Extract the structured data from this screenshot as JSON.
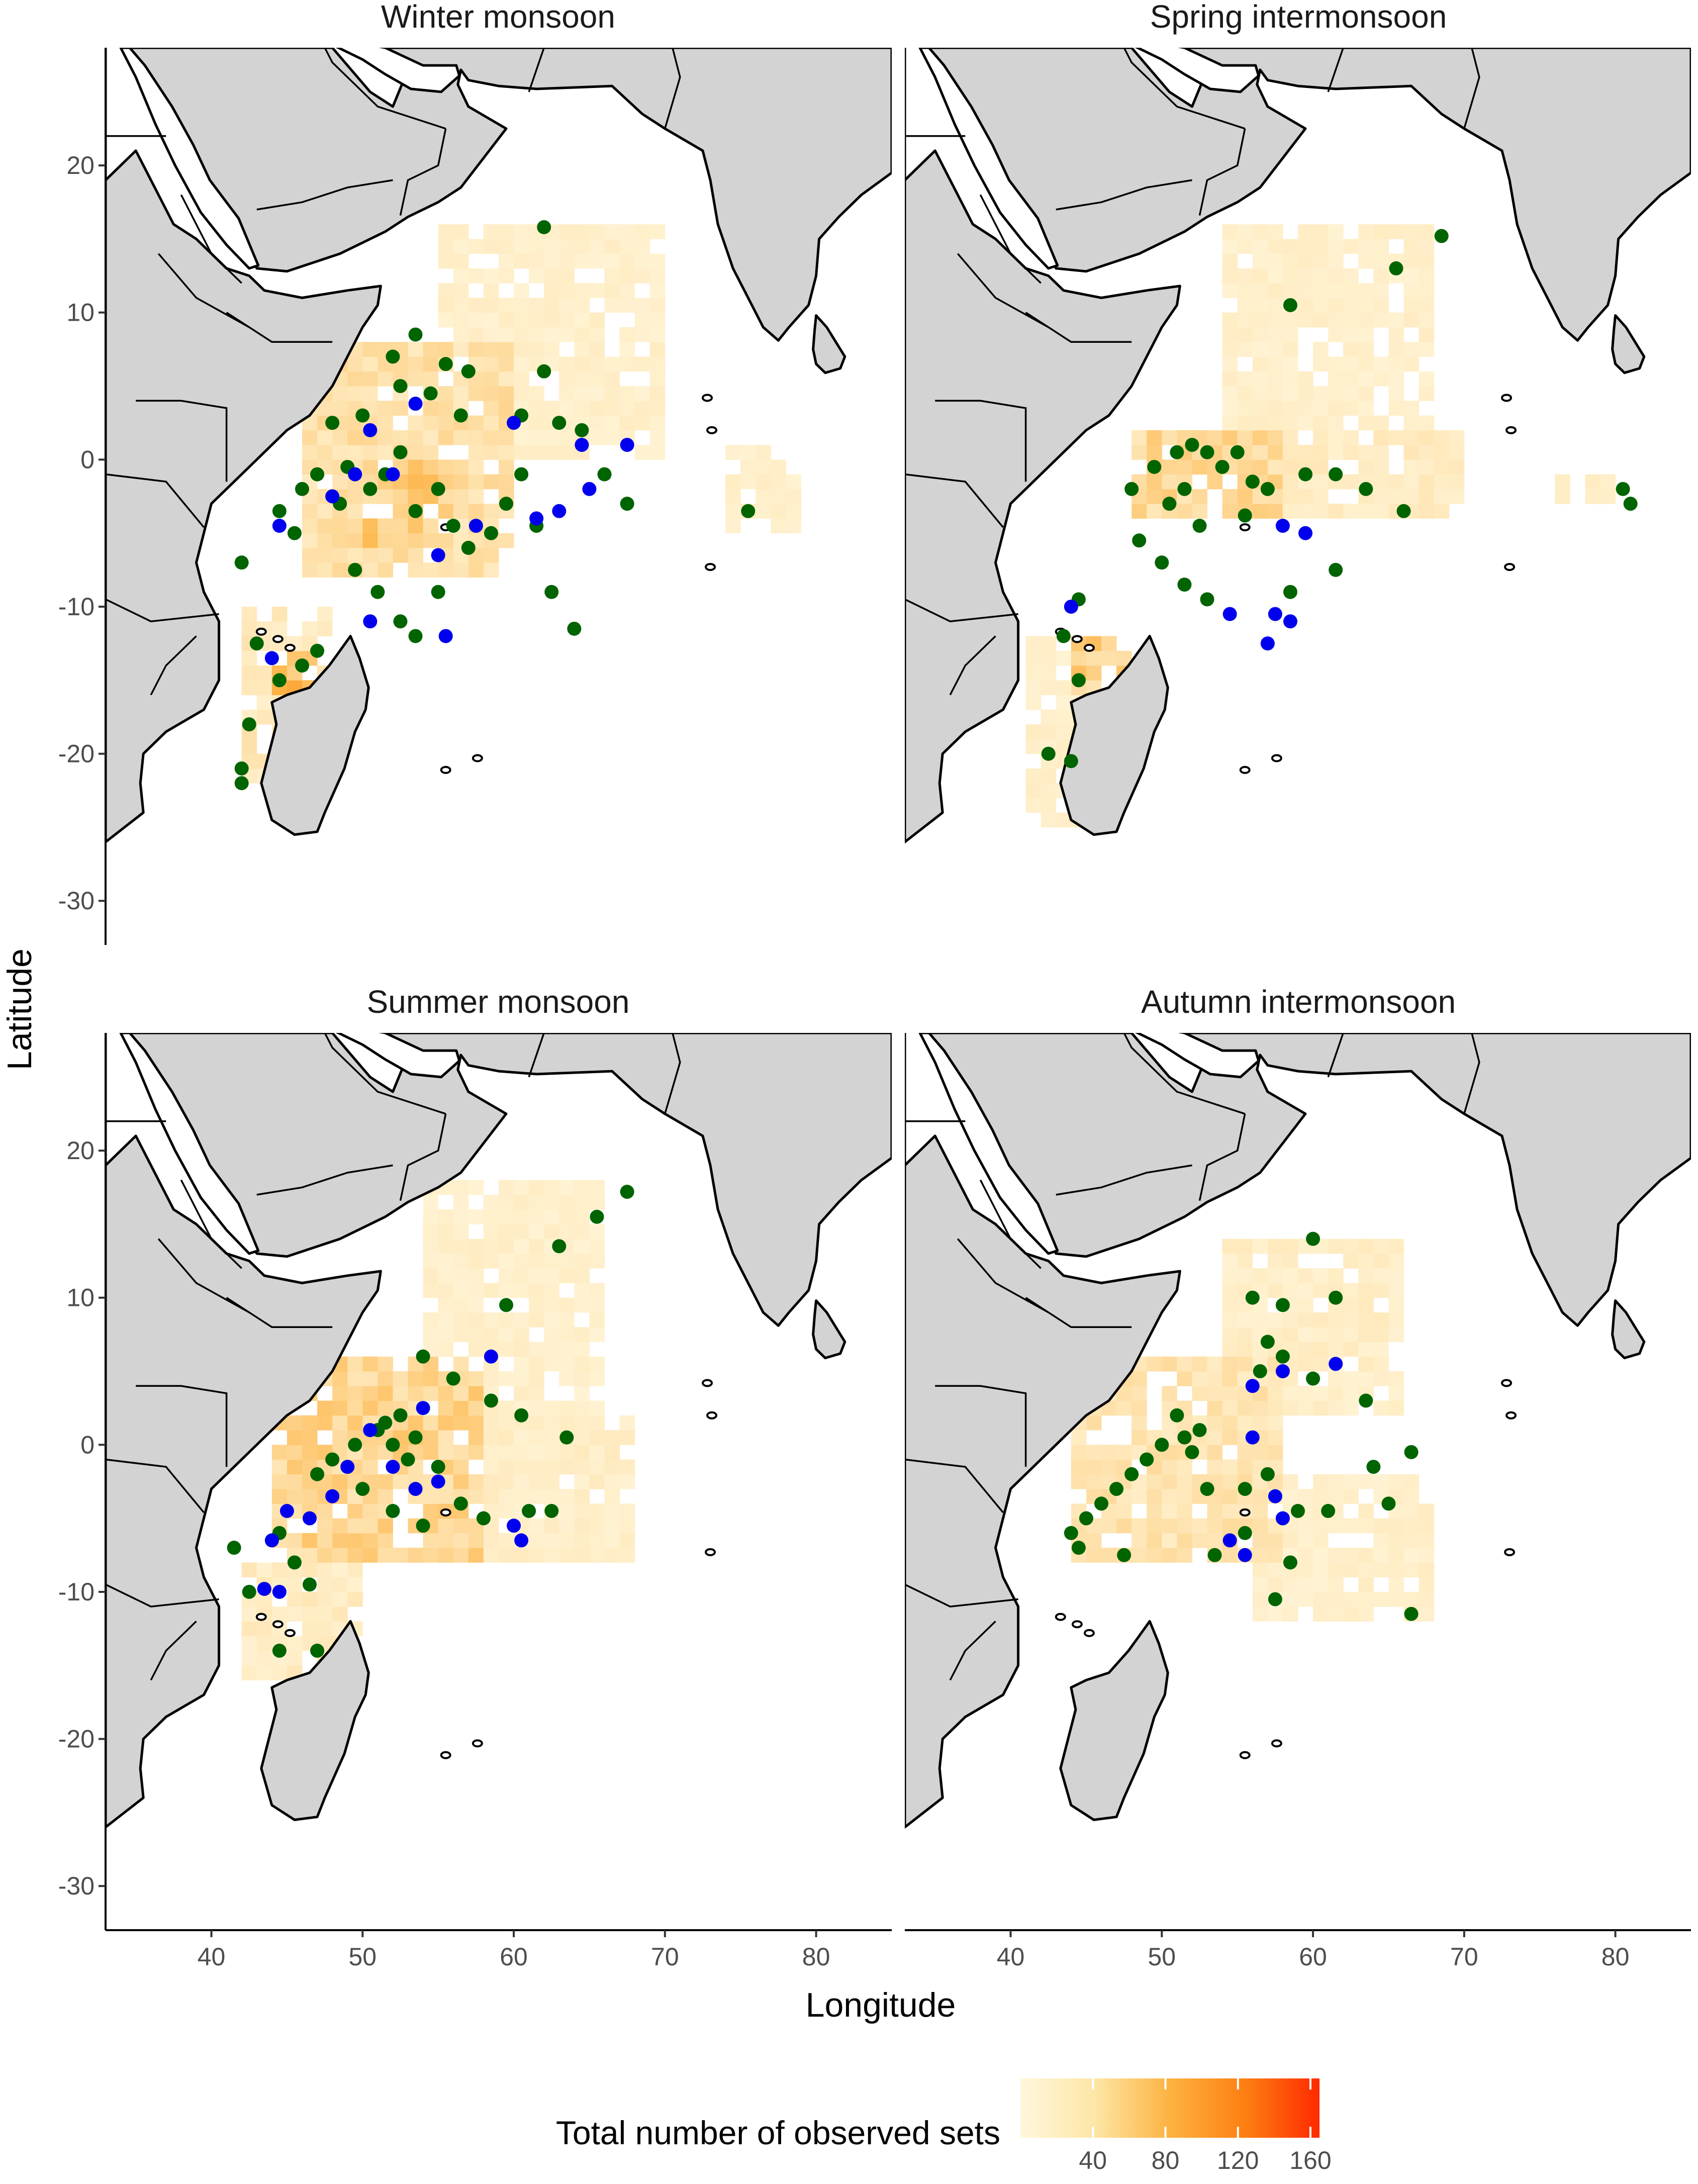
{
  "figure": {
    "panels": [
      {
        "title": "Winter monsoon"
      },
      {
        "title": "Spring intermonsoon"
      },
      {
        "title": "Summer monsoon"
      },
      {
        "title": "Autumn intermonsoon"
      }
    ],
    "xlabel": "Longitude",
    "ylabel": "Latitude",
    "x_ticks": [
      "40",
      "50",
      "60",
      "70",
      "80"
    ],
    "y_ticks": [
      "20",
      "10",
      "0",
      "-10",
      "-20",
      "-30"
    ],
    "legend": {
      "title": "Total number of observed sets",
      "ticks": [
        "40",
        "80",
        "120",
        "160"
      ]
    }
  },
  "colors": {
    "land": "#d3d3d3",
    "sea": "#ffffff",
    "point_green": "#006400",
    "point_blue": "#0000ee",
    "scale_low": "#fff7dc",
    "scale_mid": "#fdb241",
    "scale_high": "#ff2a00"
  },
  "chart_data": {
    "type": "heatmap",
    "x_axis": {
      "label": "Longitude",
      "range": [
        33,
        85
      ],
      "ticks": [
        40,
        50,
        60,
        70,
        80
      ]
    },
    "y_axis": {
      "label": "Latitude",
      "range": [
        -33,
        28
      ],
      "ticks": [
        20,
        10,
        0,
        -10,
        -20,
        -30
      ]
    },
    "fill_scale": {
      "label": "Total number of observed sets",
      "range": [
        0,
        165
      ],
      "ticks": [
        40,
        80,
        120,
        160
      ]
    },
    "grid": false,
    "legend_position": "bottom",
    "panels": [
      {
        "title": "Winter monsoon",
        "density_regions": [
          {
            "lon": [
              46,
              60
            ],
            "lat": [
              -8,
              8
            ],
            "level": 30
          },
          {
            "lon": [
              50,
              56
            ],
            "lat": [
              -6,
              0
            ],
            "level": 55
          },
          {
            "lon": [
              42,
              48
            ],
            "lat": [
              -22,
              -10
            ],
            "level": 20
          },
          {
            "lon": [
              55,
              70
            ],
            "lat": [
              0,
              16
            ],
            "level": 10
          },
          {
            "lon": [
              74,
              79
            ],
            "lat": [
              -5,
              1
            ],
            "level": 10
          },
          {
            "lon": [
              44,
              47
            ],
            "lat": [
              -16,
              -13
            ],
            "level": 80
          }
        ],
        "points_green": [
          [
            62.0,
            15.8
          ],
          [
            53.5,
            8.5
          ],
          [
            52.0,
            7.0
          ],
          [
            55.5,
            6.5
          ],
          [
            57.0,
            6.0
          ],
          [
            48.0,
            2.5
          ],
          [
            50.0,
            3.0
          ],
          [
            52.5,
            5.0
          ],
          [
            54.5,
            4.5
          ],
          [
            56.5,
            3.0
          ],
          [
            60.5,
            3.0
          ],
          [
            63.0,
            2.5
          ],
          [
            64.5,
            2.0
          ],
          [
            66.0,
            -1.0
          ],
          [
            67.5,
            -3.0
          ],
          [
            62.0,
            6.0
          ],
          [
            46.0,
            -2.0
          ],
          [
            47.0,
            -1.0
          ],
          [
            48.5,
            -3.0
          ],
          [
            49.0,
            -0.5
          ],
          [
            50.5,
            -2.0
          ],
          [
            51.5,
            -1.0
          ],
          [
            52.5,
            0.5
          ],
          [
            53.5,
            -3.5
          ],
          [
            55.0,
            -2.0
          ],
          [
            56.0,
            -4.5
          ],
          [
            57.0,
            -6.0
          ],
          [
            58.5,
            -5.0
          ],
          [
            59.5,
            -3.0
          ],
          [
            60.5,
            -1.0
          ],
          [
            61.5,
            -4.5
          ],
          [
            62.5,
            -9.0
          ],
          [
            64.0,
            -11.5
          ],
          [
            49.5,
            -7.5
          ],
          [
            51.0,
            -9.0
          ],
          [
            52.5,
            -11.0
          ],
          [
            53.5,
            -12.0
          ],
          [
            44.5,
            -3.5
          ],
          [
            45.5,
            -5.0
          ],
          [
            42.0,
            -7.0
          ],
          [
            43.0,
            -12.5
          ],
          [
            44.5,
            -15.0
          ],
          [
            46.0,
            -14.0
          ],
          [
            47.0,
            -13.0
          ],
          [
            42.5,
            -18.0
          ],
          [
            42.0,
            -21.0
          ],
          [
            42.0,
            -22.0
          ],
          [
            75.5,
            -3.5
          ],
          [
            55.0,
            -9.0
          ]
        ],
        "points_blue": [
          [
            53.5,
            3.8
          ],
          [
            50.5,
            2.0
          ],
          [
            48.0,
            -2.5
          ],
          [
            49.5,
            -1.0
          ],
          [
            52.0,
            -1.0
          ],
          [
            55.0,
            -6.5
          ],
          [
            57.5,
            -4.5
          ],
          [
            60.0,
            2.5
          ],
          [
            61.5,
            -4.0
          ],
          [
            63.0,
            -3.5
          ],
          [
            64.5,
            1.0
          ],
          [
            65.0,
            -2.0
          ],
          [
            67.5,
            1.0
          ],
          [
            50.5,
            -11.0
          ],
          [
            55.5,
            -12.0
          ],
          [
            44.0,
            -13.5
          ],
          [
            44.5,
            -4.5
          ]
        ]
      },
      {
        "title": "Spring intermonsoon",
        "density_regions": [
          {
            "lon": [
              48,
              58
            ],
            "lat": [
              -4,
              2
            ],
            "level": 40
          },
          {
            "lon": [
              44,
              48
            ],
            "lat": [
              -16,
              -12
            ],
            "level": 50
          },
          {
            "lon": [
              55,
              70
            ],
            "lat": [
              -4,
              2
            ],
            "level": 15
          },
          {
            "lon": [
              54,
              68
            ],
            "lat": [
              2,
              16
            ],
            "level": 10
          },
          {
            "lon": [
              41,
              46
            ],
            "lat": [
              -25,
              -12
            ],
            "level": 10
          },
          {
            "lon": [
              76,
              80
            ],
            "lat": [
              -3,
              -1
            ],
            "level": 10
          }
        ],
        "points_green": [
          [
            68.5,
            15.2
          ],
          [
            65.5,
            13.0
          ],
          [
            58.5,
            10.5
          ],
          [
            49.5,
            -0.5
          ],
          [
            51.0,
            0.5
          ],
          [
            52.0,
            1.0
          ],
          [
            53.0,
            0.5
          ],
          [
            54.0,
            -0.5
          ],
          [
            55.0,
            0.5
          ],
          [
            56.0,
            -1.5
          ],
          [
            51.5,
            -2.0
          ],
          [
            48.0,
            -2.0
          ],
          [
            50.5,
            -3.0
          ],
          [
            52.5,
            -4.5
          ],
          [
            55.5,
            -3.8
          ],
          [
            57.0,
            -2.0
          ],
          [
            59.5,
            -1.0
          ],
          [
            61.5,
            -1.0
          ],
          [
            63.5,
            -2.0
          ],
          [
            66.0,
            -3.5
          ],
          [
            48.5,
            -5.5
          ],
          [
            50.0,
            -7.0
          ],
          [
            51.5,
            -8.5
          ],
          [
            53.0,
            -9.5
          ],
          [
            58.5,
            -9.0
          ],
          [
            61.5,
            -7.5
          ],
          [
            44.5,
            -9.5
          ],
          [
            43.5,
            -12.0
          ],
          [
            44.5,
            -15.0
          ],
          [
            42.5,
            -20.0
          ],
          [
            44.0,
            -20.5
          ],
          [
            80.5,
            -2.0
          ],
          [
            81.0,
            -3.0
          ]
        ],
        "points_blue": [
          [
            58.0,
            -4.5
          ],
          [
            59.5,
            -5.0
          ],
          [
            54.5,
            -10.5
          ],
          [
            57.5,
            -10.5
          ],
          [
            58.5,
            -11.0
          ],
          [
            57.0,
            -12.5
          ],
          [
            44.0,
            -10.0
          ]
        ]
      },
      {
        "title": "Summer monsoon",
        "density_regions": [
          {
            "lon": [
              44,
              58
            ],
            "lat": [
              -8,
              6
            ],
            "level": 45
          },
          {
            "lon": [
              54,
              66
            ],
            "lat": [
              0,
              18
            ],
            "level": 10
          },
          {
            "lon": [
              42,
              50
            ],
            "lat": [
              -16,
              -8
            ],
            "level": 15
          },
          {
            "lon": [
              58,
              68
            ],
            "lat": [
              -8,
              2
            ],
            "level": 12
          }
        ],
        "points_green": [
          [
            67.5,
            17.2
          ],
          [
            65.5,
            15.5
          ],
          [
            63.0,
            13.5
          ],
          [
            59.5,
            9.5
          ],
          [
            54.0,
            6.0
          ],
          [
            56.0,
            4.5
          ],
          [
            58.5,
            3.0
          ],
          [
            60.5,
            2.0
          ],
          [
            63.5,
            0.5
          ],
          [
            47.0,
            -2.0
          ],
          [
            48.0,
            -1.0
          ],
          [
            49.5,
            0.0
          ],
          [
            51.0,
            1.0
          ],
          [
            52.5,
            2.0
          ],
          [
            53.5,
            0.5
          ],
          [
            55.0,
            -1.5
          ],
          [
            50.0,
            -3.0
          ],
          [
            52.0,
            -4.5
          ],
          [
            54.0,
            -5.5
          ],
          [
            56.5,
            -4.0
          ],
          [
            58.0,
            -5.0
          ],
          [
            61.0,
            -4.5
          ],
          [
            62.5,
            -4.5
          ],
          [
            44.5,
            -6.0
          ],
          [
            45.5,
            -8.0
          ],
          [
            46.5,
            -9.5
          ],
          [
            42.5,
            -10.0
          ],
          [
            41.5,
            -7.0
          ],
          [
            44.5,
            -14.0
          ],
          [
            47.0,
            -14.0
          ],
          [
            51.5,
            1.5
          ],
          [
            52.0,
            0.0
          ],
          [
            53.0,
            -1.0
          ]
        ],
        "points_blue": [
          [
            58.5,
            6.0
          ],
          [
            54.0,
            2.5
          ],
          [
            50.5,
            1.0
          ],
          [
            49.0,
            -1.5
          ],
          [
            48.0,
            -3.5
          ],
          [
            46.5,
            -5.0
          ],
          [
            45.0,
            -4.5
          ],
          [
            44.0,
            -6.5
          ],
          [
            52.0,
            -1.5
          ],
          [
            53.5,
            -3.0
          ],
          [
            55.0,
            -2.5
          ],
          [
            60.0,
            -5.5
          ],
          [
            60.5,
            -6.5
          ],
          [
            43.5,
            -9.8
          ],
          [
            44.5,
            -10.0
          ]
        ]
      },
      {
        "title": "Autumn intermonsoon",
        "density_regions": [
          {
            "lon": [
              44,
              58
            ],
            "lat": [
              -8,
              6
            ],
            "level": 25
          },
          {
            "lon": [
              54,
              66
            ],
            "lat": [
              2,
              14
            ],
            "level": 12
          },
          {
            "lon": [
              56,
              68
            ],
            "lat": [
              -12,
              -2
            ],
            "level": 10
          }
        ],
        "points_green": [
          [
            60.0,
            14.0
          ],
          [
            56.0,
            10.0
          ],
          [
            58.0,
            9.5
          ],
          [
            61.5,
            10.0
          ],
          [
            57.0,
            7.0
          ],
          [
            58.0,
            6.0
          ],
          [
            56.5,
            5.0
          ],
          [
            60.0,
            4.5
          ],
          [
            63.5,
            3.0
          ],
          [
            51.0,
            2.0
          ],
          [
            52.5,
            1.0
          ],
          [
            50.0,
            0.0
          ],
          [
            49.0,
            -1.0
          ],
          [
            48.0,
            -2.0
          ],
          [
            47.0,
            -3.0
          ],
          [
            46.0,
            -4.0
          ],
          [
            45.0,
            -5.0
          ],
          [
            44.0,
            -6.0
          ],
          [
            44.5,
            -7.0
          ],
          [
            47.5,
            -7.5
          ],
          [
            53.0,
            -3.0
          ],
          [
            55.5,
            -3.0
          ],
          [
            57.0,
            -2.0
          ],
          [
            59.0,
            -4.5
          ],
          [
            61.0,
            -4.5
          ],
          [
            64.0,
            -1.5
          ],
          [
            66.5,
            -0.5
          ],
          [
            65.0,
            -4.0
          ],
          [
            53.5,
            -7.5
          ],
          [
            55.5,
            -6.0
          ],
          [
            58.5,
            -8.0
          ],
          [
            57.5,
            -10.5
          ],
          [
            66.5,
            -11.5
          ],
          [
            51.5,
            0.5
          ],
          [
            52.0,
            -0.5
          ]
        ],
        "points_blue": [
          [
            56.0,
            4.0
          ],
          [
            58.0,
            5.0
          ],
          [
            61.5,
            5.5
          ],
          [
            56.0,
            0.5
          ],
          [
            57.5,
            -3.5
          ],
          [
            58.0,
            -5.0
          ],
          [
            54.5,
            -6.5
          ],
          [
            55.5,
            -7.5
          ]
        ]
      }
    ]
  }
}
